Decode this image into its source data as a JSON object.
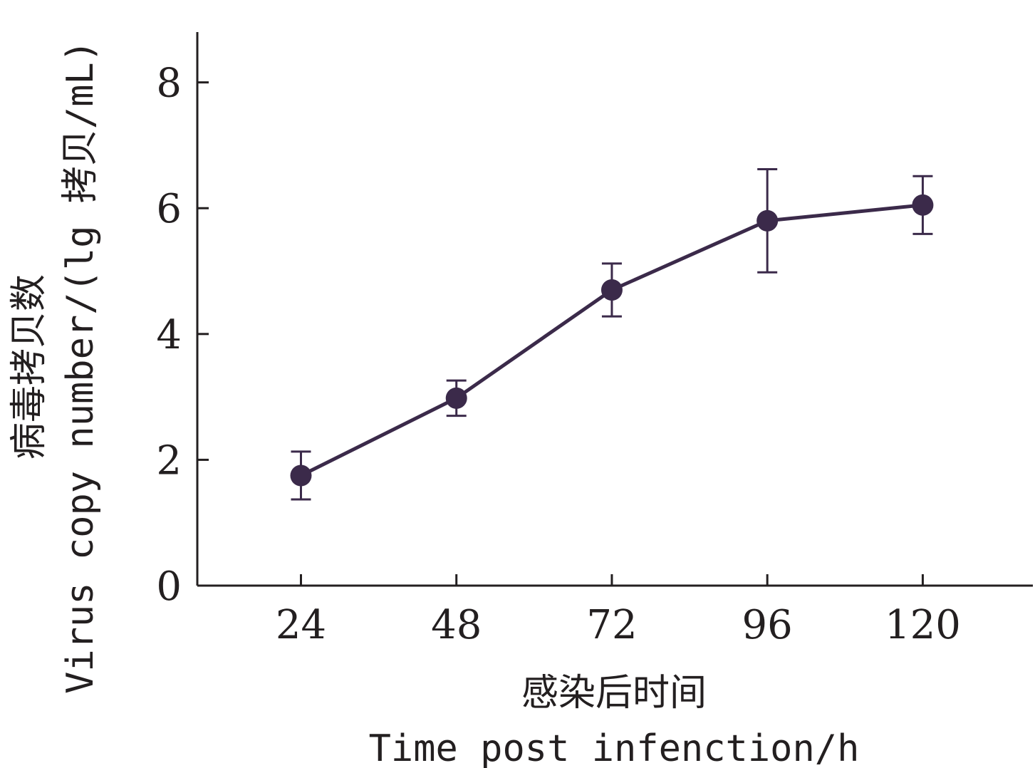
{
  "chart_data": {
    "type": "line",
    "xlabel_cn": "感染后时间",
    "xlabel_en": "Time post infenction/h",
    "ylabel_cn": "病毒拷贝数",
    "ylabel_en": "Virus copy number/(lg 拷贝/mL)",
    "x": [
      24,
      48,
      72,
      96,
      120
    ],
    "xticks": [
      "24",
      "48",
      "72",
      "96",
      "120"
    ],
    "yticks": [
      "0",
      "2",
      "4",
      "6",
      "8"
    ],
    "ylim": [
      0,
      8.8
    ],
    "xlim": [
      8,
      137
    ],
    "series": [
      {
        "values": [
          1.75,
          2.98,
          4.7,
          5.8,
          6.05
        ],
        "error": [
          0.38,
          0.28,
          0.42,
          0.82,
          0.46
        ]
      }
    ],
    "colors": {
      "series": "#3b2a4a",
      "axis": "#231f20"
    }
  }
}
